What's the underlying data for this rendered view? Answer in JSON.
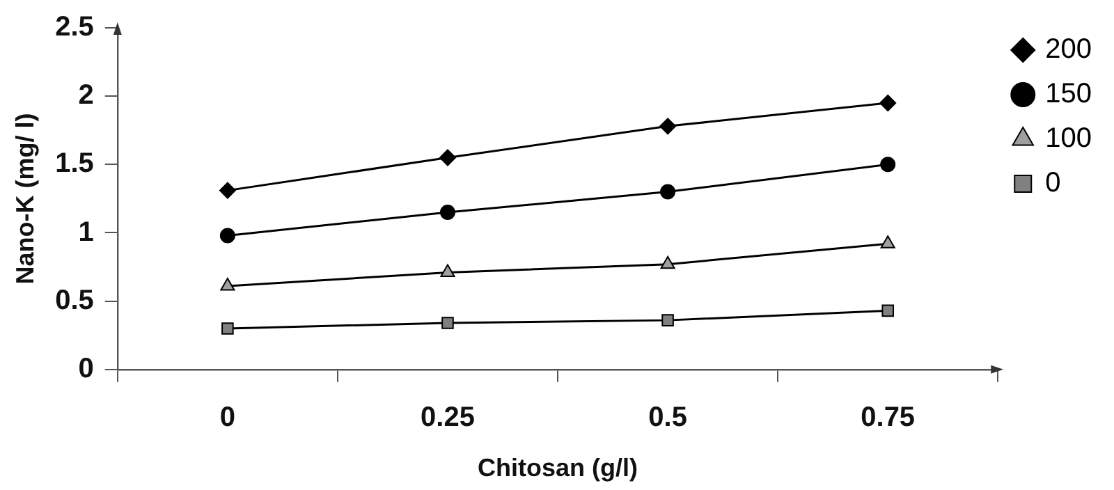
{
  "chart_data": {
    "type": "line",
    "xlabel": "Chitosan (g/l)",
    "ylabel": "Nano-K (mg/ l)",
    "categories": [
      "0",
      "0.25",
      "0.5",
      "0.75"
    ],
    "ylim": [
      0,
      2.5
    ],
    "yticks": [
      0,
      0.5,
      1,
      1.5,
      2,
      2.5
    ],
    "grid": false,
    "legend": "top right",
    "line_style": "solid",
    "series": [
      {
        "name": "200",
        "color": "#000000",
        "marker": "diamond",
        "values": [
          1.31,
          1.55,
          1.78,
          1.95
        ]
      },
      {
        "name": "150",
        "color": "#000000",
        "marker": "circle",
        "values": [
          0.98,
          1.15,
          1.3,
          1.5
        ]
      },
      {
        "name": "100",
        "color": "#a0a0a0",
        "marker": "triangle",
        "values": [
          0.61,
          0.71,
          0.77,
          0.92
        ]
      },
      {
        "name": "0",
        "color": "#808080",
        "marker": "square",
        "values": [
          0.3,
          0.34,
          0.36,
          0.43
        ]
      }
    ]
  }
}
